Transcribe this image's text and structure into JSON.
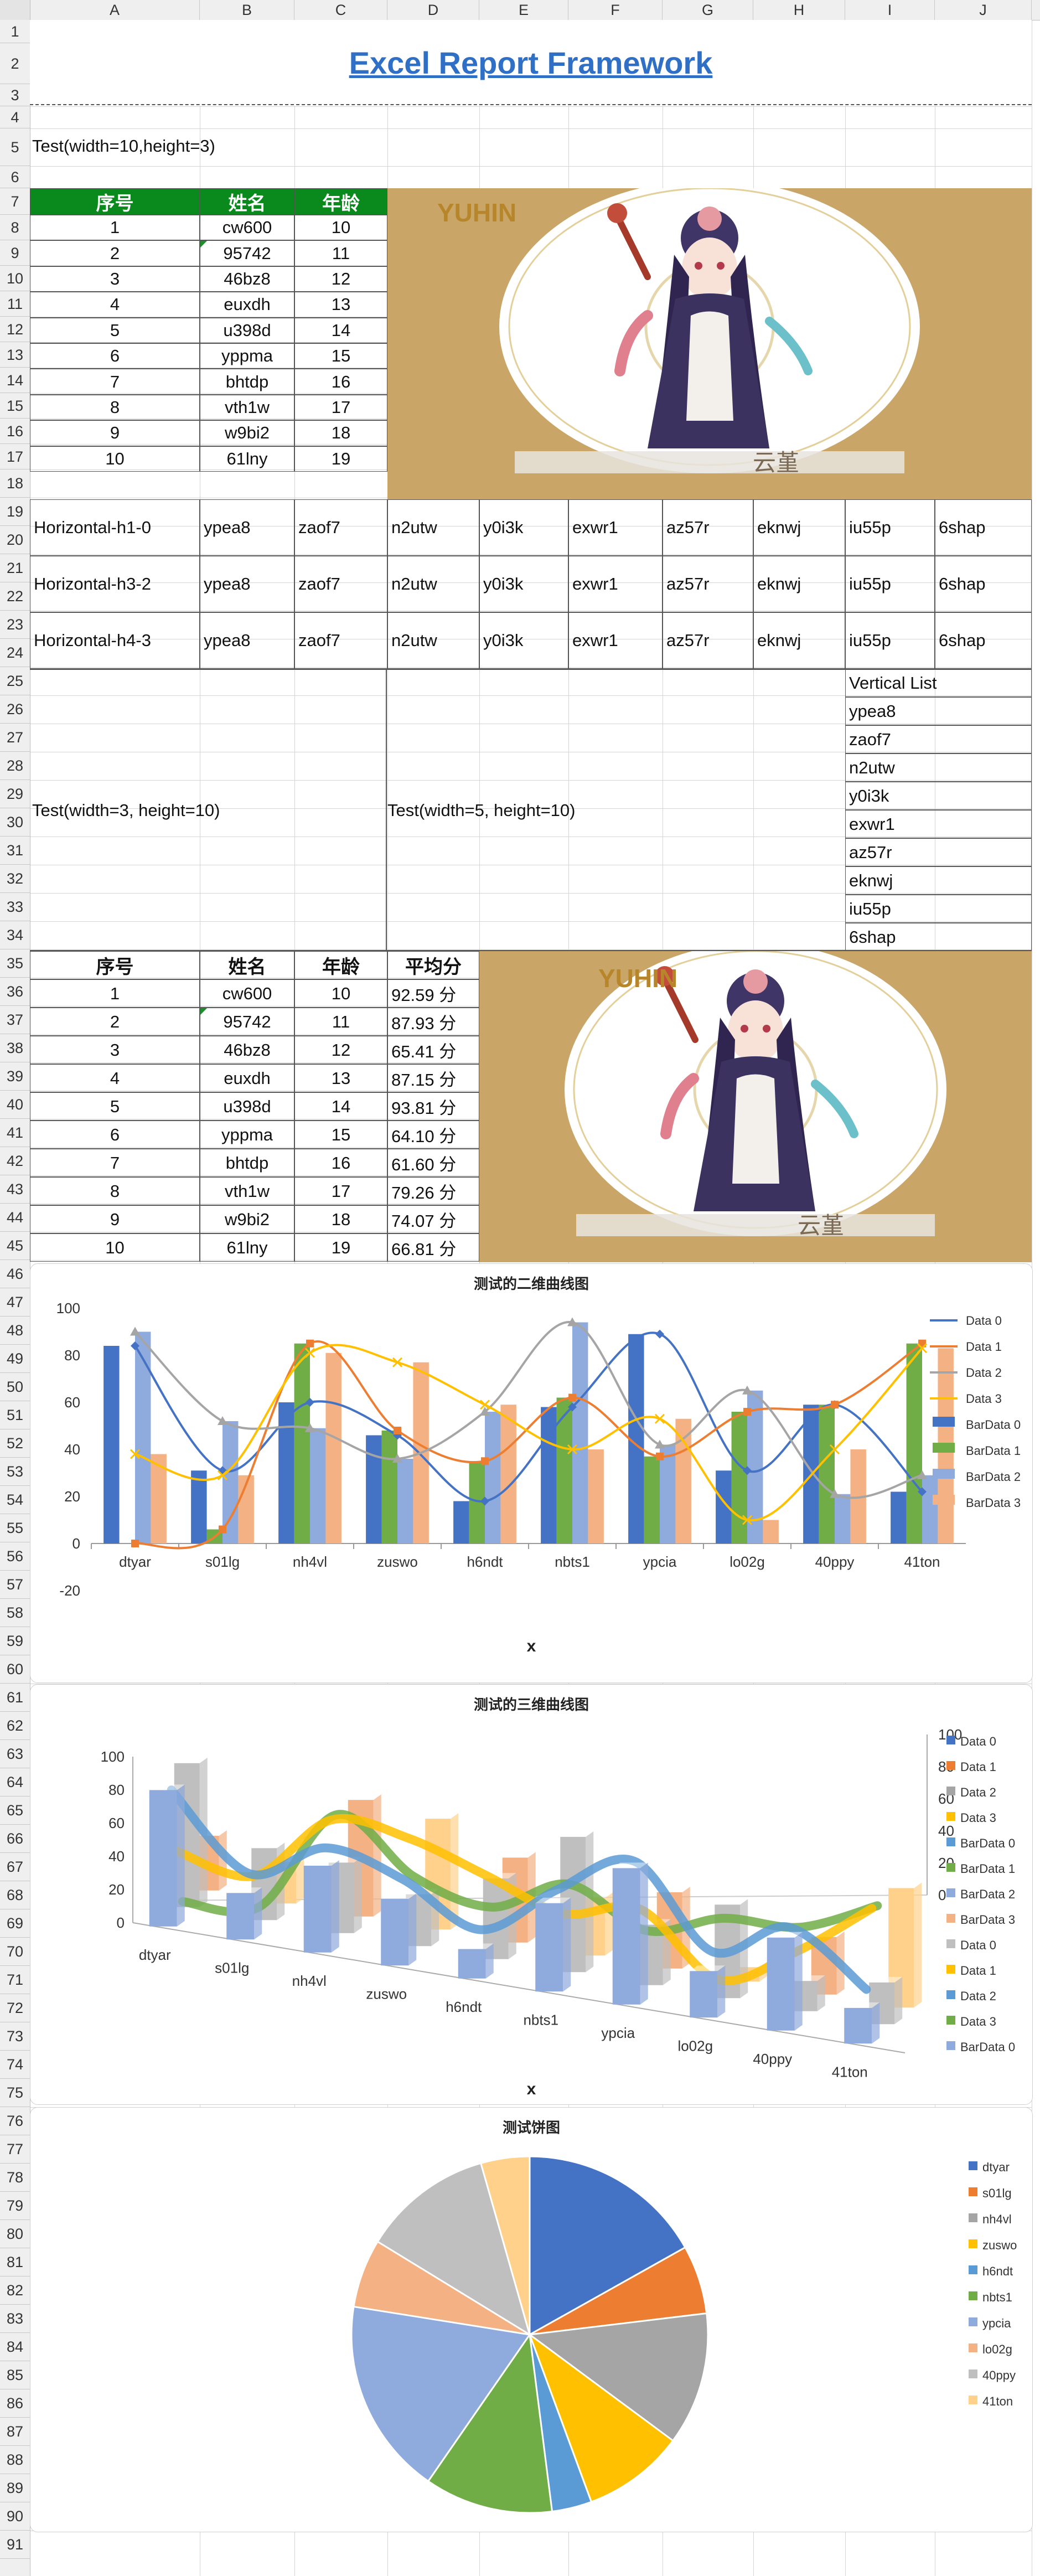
{
  "columns": [
    "A",
    "B",
    "C",
    "D",
    "E",
    "F",
    "G",
    "H",
    "I",
    "J"
  ],
  "rows": [
    "1",
    "2",
    "3",
    "4",
    "5",
    "6",
    "7",
    "8",
    "9",
    "10",
    "11",
    "12",
    "13",
    "14",
    "15",
    "16",
    "17",
    "18",
    "19",
    "20",
    "21",
    "22",
    "23",
    "24",
    "25",
    "26",
    "27",
    "28",
    "29",
    "30",
    "31",
    "32",
    "33",
    "34",
    "35",
    "36",
    "37",
    "38",
    "39",
    "40",
    "41",
    "42",
    "43",
    "44",
    "45",
    "46",
    "47",
    "48",
    "49",
    "50",
    "51",
    "52",
    "53",
    "54",
    "55",
    "56",
    "57",
    "58",
    "59",
    "60",
    "61",
    "62",
    "63",
    "64",
    "65",
    "66",
    "67",
    "68",
    "69",
    "70",
    "71",
    "72",
    "73",
    "74",
    "75",
    "76",
    "77",
    "78",
    "79",
    "80",
    "81",
    "82",
    "83",
    "84",
    "85",
    "86",
    "87",
    "88",
    "89",
    "90",
    "91"
  ],
  "title": "Excel Report Framework",
  "test_small": "Test(width=10,height=3)",
  "table1": {
    "headers": [
      "序号",
      "姓名",
      "年龄"
    ],
    "rows": [
      [
        "1",
        "cw600",
        "10"
      ],
      [
        "2",
        "95742",
        "11"
      ],
      [
        "3",
        "46bz8",
        "12"
      ],
      [
        "4",
        "euxdh",
        "13"
      ],
      [
        "5",
        "u398d",
        "14"
      ],
      [
        "6",
        "yppma",
        "15"
      ],
      [
        "7",
        "bhtdp",
        "16"
      ],
      [
        "8",
        "vth1w",
        "17"
      ],
      [
        "9",
        "w9bi2",
        "18"
      ],
      [
        "10",
        "61lny",
        "19"
      ]
    ]
  },
  "image_logo_text": "YUHIN",
  "image_caption": "云堇",
  "horizontal": {
    "labels": [
      "Horizontal-h1-0",
      "Horizontal-h3-2",
      "Horizontal-h4-3"
    ],
    "values": [
      "ypea8",
      "zaof7",
      "n2utw",
      "y0i3k",
      "exwr1",
      "az57r",
      "eknwj",
      "iu55p",
      "6shap"
    ]
  },
  "test_w3": "Test(width=3, height=10)",
  "test_w5": "Test(width=5, height=10)",
  "vertical": {
    "title": "Vertical List",
    "items": [
      "ypea8",
      "zaof7",
      "n2utw",
      "y0i3k",
      "exwr1",
      "az57r",
      "eknwj",
      "iu55p",
      "6shap"
    ]
  },
  "table2": {
    "headers": [
      "序号",
      "姓名",
      "年龄",
      "平均分"
    ],
    "rows": [
      [
        "1",
        "cw600",
        "10",
        "92.59 分"
      ],
      [
        "2",
        "95742",
        "11",
        "87.93 分"
      ],
      [
        "3",
        "46bz8",
        "12",
        "65.41 分"
      ],
      [
        "4",
        "euxdh",
        "13",
        "87.15 分"
      ],
      [
        "5",
        "u398d",
        "14",
        "93.81 分"
      ],
      [
        "6",
        "yppma",
        "15",
        "64.10 分"
      ],
      [
        "7",
        "bhtdp",
        "16",
        "61.60 分"
      ],
      [
        "8",
        "vth1w",
        "17",
        "79.26 分"
      ],
      [
        "9",
        "w9bi2",
        "18",
        "74.07 分"
      ],
      [
        "10",
        "61lny",
        "19",
        "66.81 分"
      ]
    ]
  },
  "colors": {
    "header_green": "#0a8a1c",
    "title_blue": "#2f6fc6",
    "s_blue": "#4472c4",
    "s_orange": "#ed7d31",
    "s_gray": "#a5a5a5",
    "s_gold": "#ffc000",
    "s_lightblue": "#5b9bd5",
    "s_green": "#70ad47",
    "s_periwinkle": "#8faadc",
    "s_salmon": "#f4b183",
    "s_silver": "#bfbfbf",
    "s_peach": "#ffd18a"
  },
  "chart_data": [
    {
      "type": "bar",
      "title": "测试的二维曲线图",
      "xlabel": "x",
      "ylabel": "",
      "ylim": [
        -20,
        100
      ],
      "yticks": [
        "-20",
        "0",
        "20",
        "40",
        "60",
        "80",
        "100"
      ],
      "legend": "right",
      "categories": [
        "dtyar",
        "s01lg",
        "nh4vl",
        "zuswo",
        "h6ndt",
        "nbts1",
        "ypcia",
        "lo02g",
        "40ppy",
        "41ton"
      ],
      "bar_series": [
        {
          "name": "BarData 0",
          "values": [
            84,
            31,
            60,
            46,
            18,
            58,
            89,
            31,
            59,
            22
          ]
        },
        {
          "name": "BarData 1",
          "values": [
            0,
            6,
            85,
            48,
            35,
            62,
            37,
            56,
            59,
            85
          ]
        },
        {
          "name": "BarData 2",
          "values": [
            90,
            52,
            49,
            36,
            56,
            94,
            42,
            65,
            21,
            29
          ]
        },
        {
          "name": "BarData 3",
          "values": [
            38,
            29,
            81,
            77,
            59,
            40,
            53,
            10,
            40,
            83
          ]
        }
      ],
      "line_series": [
        {
          "name": "Data 0",
          "values": [
            84,
            31,
            60,
            46,
            18,
            58,
            89,
            31,
            59,
            22
          ]
        },
        {
          "name": "Data 1",
          "values": [
            0,
            6,
            85,
            48,
            35,
            62,
            37,
            56,
            59,
            85
          ]
        },
        {
          "name": "Data 2",
          "values": [
            90,
            52,
            49,
            36,
            56,
            94,
            42,
            65,
            21,
            29
          ]
        },
        {
          "name": "Data 3",
          "values": [
            38,
            29,
            81,
            77,
            59,
            40,
            53,
            10,
            40,
            83
          ]
        }
      ]
    },
    {
      "type": "bar",
      "title": "测试的三维曲线图",
      "xlabel": "x",
      "ylabel": "",
      "ylim": [
        0,
        100
      ],
      "yticks": [
        "0",
        "20",
        "40",
        "60",
        "80",
        "100"
      ],
      "yticks_right": [
        "0",
        "20",
        "40",
        "60",
        "80",
        "100"
      ],
      "legend": "right",
      "categories": [
        "dtyar",
        "s01lg",
        "nh4vl",
        "zuswo",
        "h6ndt",
        "nbts1",
        "ypcia",
        "lo02g",
        "40ppy",
        "41ton"
      ],
      "legend_entries": [
        "Data 0",
        "Data 1",
        "Data 2",
        "Data 3",
        "BarData 0",
        "BarData 1",
        "BarData 2",
        "BarData 3",
        "Data 0",
        "Data 1",
        "Data 2",
        "Data 3",
        "BarData 0"
      ],
      "front_bars": [
        88,
        30,
        56,
        43,
        19,
        57,
        88,
        30,
        60,
        23
      ],
      "back_bars": [
        38,
        29,
        81,
        77,
        59,
        40,
        53,
        10,
        40,
        83
      ],
      "gray_bars": [
        100,
        50,
        49,
        36,
        56,
        94,
        42,
        65,
        21,
        29
      ],
      "lines": [
        {
          "name": "Data 1",
          "values": [
            0,
            6,
            85,
            48,
            35,
            62,
            37,
            56,
            59,
            85
          ]
        },
        {
          "name": "Data 3",
          "values": [
            38,
            29,
            81,
            77,
            59,
            40,
            53,
            10,
            40,
            83
          ]
        },
        {
          "name": "Data 0",
          "values": [
            84,
            31,
            60,
            46,
            18,
            58,
            89,
            31,
            59,
            22
          ]
        }
      ]
    },
    {
      "type": "pie",
      "title": "测试饼图",
      "legend": "right",
      "categories": [
        "dtyar",
        "s01lg",
        "nh4vl",
        "zuswo",
        "h6ndt",
        "nbts1",
        "ypcia",
        "lo02g",
        "40ppy",
        "41ton"
      ],
      "values": [
        84,
        31,
        60,
        46,
        18,
        58,
        89,
        31,
        59,
        22
      ]
    }
  ]
}
